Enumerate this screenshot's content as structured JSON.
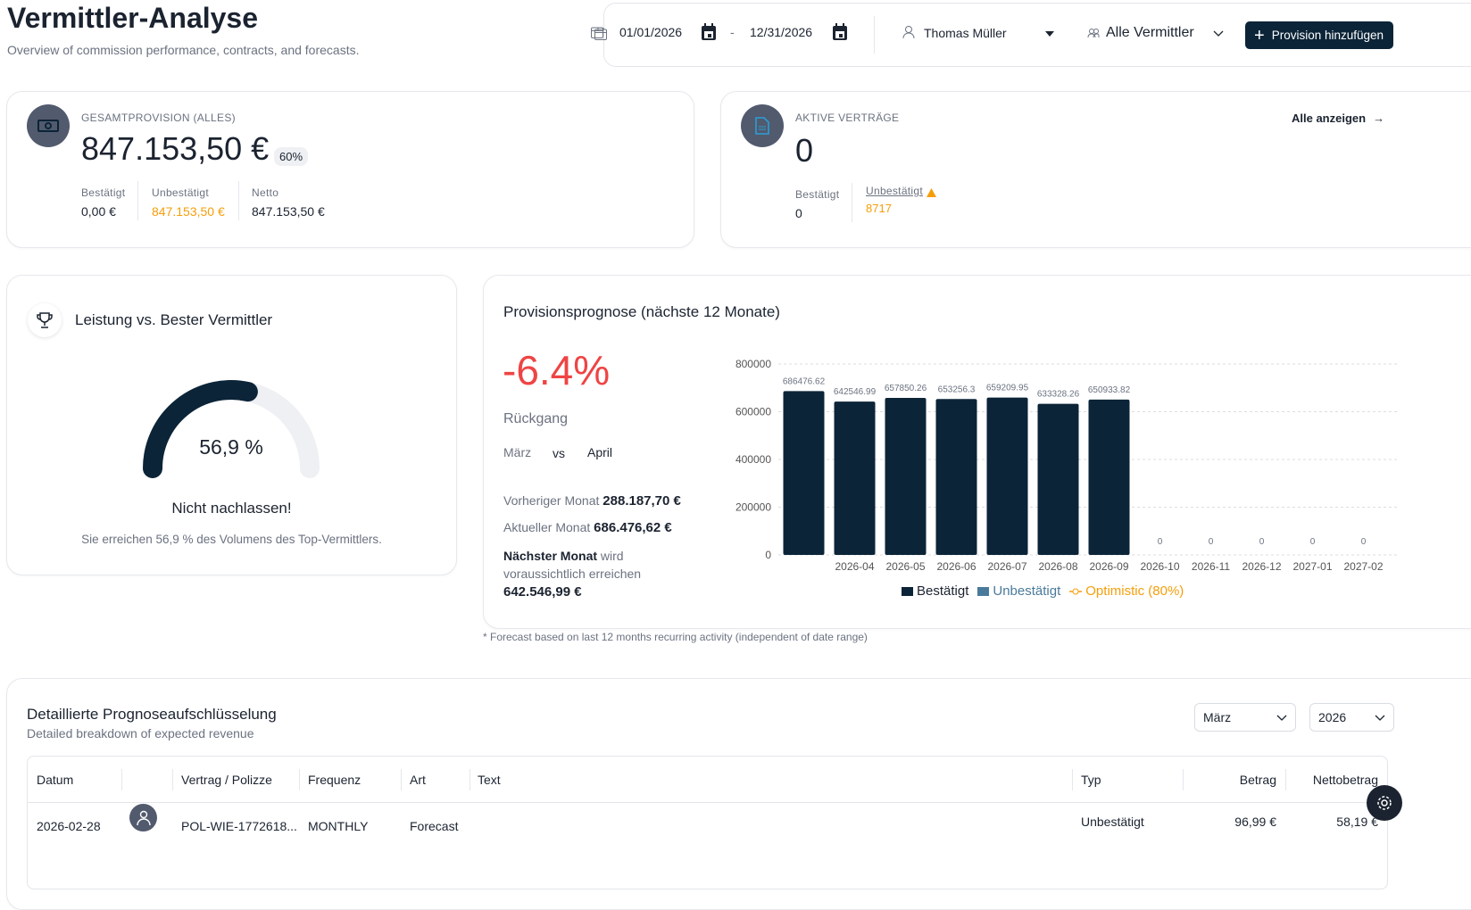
{
  "header": {
    "title": "Vermittler-Analyse",
    "subtitle": "Overview of commission performance, contracts, and forecasts."
  },
  "toolbar": {
    "date_from": "01/01/2026",
    "date_sep": "-",
    "date_to": "12/31/2026",
    "user": "Thomas Müller",
    "broker_filter": "Alle Vermittler",
    "add_button": "Provision hinzufügen"
  },
  "total_card": {
    "label": "GESAMTPROVISION (ALLES)",
    "value": "847.153,50 €",
    "badge": "60%",
    "stats": [
      {
        "label": "Bestätigt",
        "value": "0,00 €"
      },
      {
        "label": "Unbestätigt",
        "value": "847.153,50 €"
      },
      {
        "label": "Netto",
        "value": "847.153,50 €"
      }
    ]
  },
  "contracts_card": {
    "label": "AKTIVE VERTRÄGE",
    "value": "0",
    "link": "Alle anzeigen",
    "confirmed_label": "Bestätigt",
    "confirmed_value": "0",
    "unconfirmed_label": "Unbestätigt",
    "unconfirmed_value": "8717"
  },
  "performance": {
    "title": "Leistung vs. Bester Vermittler",
    "percent": 56.9,
    "percent_label": "56,9 %",
    "headline": "Nicht nachlassen!",
    "text": "Sie erreichen 56,9 % des Volumens des Top-Vermittlers."
  },
  "forecast": {
    "title": "Provisionsprognose (nächste 12 Monate)",
    "change": "-6.4%",
    "change_label": "Rückgang",
    "from_month": "März",
    "vs": "vs",
    "to_month": "April",
    "prev_label": "Vorheriger Monat",
    "prev_value": "288.187,70 €",
    "curr_label": "Aktueller Monat",
    "curr_value": "686.476,62 €",
    "next_label": "Nächster Monat",
    "next_text": "wird voraussichtlich erreichen",
    "next_value": "642.546,99 €",
    "footnote": "* Forecast based on last 12 months recurring activity (independent of date range)"
  },
  "chart_data": {
    "type": "bar",
    "categories": [
      "",
      "2026-04",
      "2026-05",
      "2026-06",
      "2026-07",
      "2026-08",
      "2026-09",
      "2026-10",
      "2026-11",
      "2026-12",
      "2027-01",
      "2027-02"
    ],
    "series": [
      {
        "name": "Bestätigt",
        "color": "#0b2438",
        "values": [
          686476.62,
          642546.99,
          657850.26,
          653256.3,
          659209.95,
          633328.26,
          650933.82,
          0,
          0,
          0,
          0,
          0
        ]
      }
    ],
    "data_labels": [
      "686476.62",
      "642546.99",
      "657850.26",
      "653256.3",
      "659209.95",
      "633328.26",
      "650933.82",
      "0",
      "0",
      "0",
      "0",
      "0"
    ],
    "yticks": [
      "0",
      "200000",
      "400000",
      "600000",
      "800000"
    ],
    "ylim": [
      0,
      800000
    ],
    "grid": true,
    "legend": [
      {
        "label": "Bestätigt",
        "color": "#0b2438"
      },
      {
        "label": "Unbestätigt",
        "color": "#4a7a9b"
      },
      {
        "label": "Optimistic (80%)",
        "color": "#f59e0b"
      }
    ],
    "legend_position": "bottom"
  },
  "breakdown": {
    "title": "Detaillierte Prognoseaufschlüsselung",
    "subtitle": "Detailed breakdown of expected revenue",
    "month": "März",
    "year": "2026",
    "columns": [
      "Datum",
      "",
      "Vertrag / Polizze",
      "Frequenz",
      "Art",
      "Text",
      "Typ",
      "Betrag",
      "Nettobetrag"
    ],
    "rows": [
      {
        "date": "2026-02-28",
        "contract": "POL-WIE-1772618...",
        "frequency": "MONTHLY",
        "type": "Forecast",
        "text": "",
        "status": "Unbestätigt",
        "amount": "96,99 €",
        "net": "58,19 €"
      }
    ]
  }
}
